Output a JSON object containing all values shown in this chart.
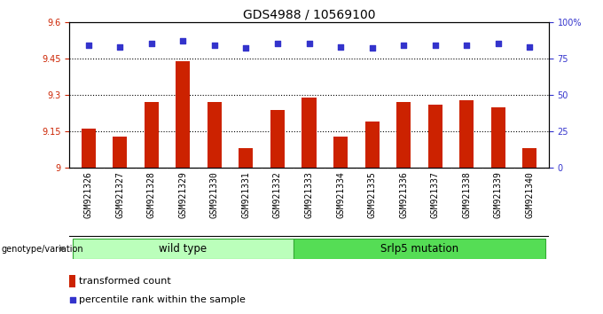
{
  "title": "GDS4988 / 10569100",
  "samples": [
    "GSM921326",
    "GSM921327",
    "GSM921328",
    "GSM921329",
    "GSM921330",
    "GSM921331",
    "GSM921332",
    "GSM921333",
    "GSM921334",
    "GSM921335",
    "GSM921336",
    "GSM921337",
    "GSM921338",
    "GSM921339",
    "GSM921340"
  ],
  "transformed_count": [
    9.16,
    9.13,
    9.27,
    9.44,
    9.27,
    9.08,
    9.24,
    9.29,
    9.13,
    9.19,
    9.27,
    9.26,
    9.28,
    9.25,
    9.08
  ],
  "percentile_rank": [
    84,
    83,
    85,
    87,
    84,
    82,
    85,
    85,
    83,
    82,
    84,
    84,
    84,
    85,
    83
  ],
  "ylim": [
    9.0,
    9.6
  ],
  "yticks": [
    9.0,
    9.15,
    9.3,
    9.45,
    9.6
  ],
  "ytick_labels": [
    "9",
    "9.15",
    "9.3",
    "9.45",
    "9.6"
  ],
  "right_yticks": [
    0,
    25,
    50,
    75,
    100
  ],
  "right_ytick_labels": [
    "0",
    "25",
    "50",
    "75",
    "100%"
  ],
  "hlines": [
    9.15,
    9.3,
    9.45
  ],
  "bar_color": "#cc2200",
  "dot_color": "#3333cc",
  "wild_type_label": "wild type",
  "mutation_label": "Srlp5 mutation",
  "genotype_label": "genotype/variation",
  "legend_bar": "transformed count",
  "legend_dot": "percentile rank within the sample",
  "n_wild_type": 7,
  "green_light": "#bbffbb",
  "green_dark": "#55dd55",
  "gray_bg": "#cccccc",
  "title_fontsize": 10,
  "tick_fontsize": 7,
  "right_tick_color": "#3333cc",
  "left_tick_color": "#cc2200"
}
